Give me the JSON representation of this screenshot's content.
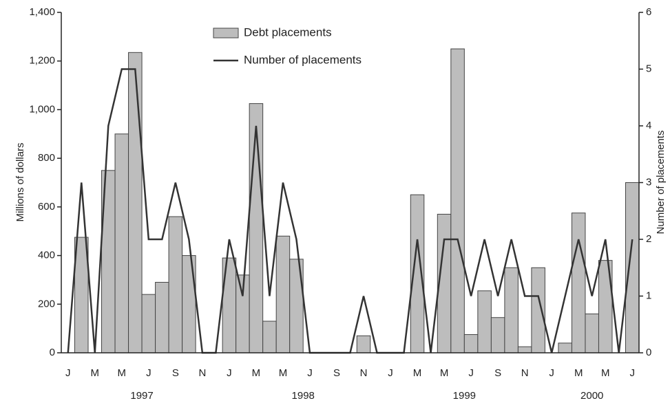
{
  "chart_data": {
    "type": "bar_line",
    "categories": [
      "J",
      null,
      "M",
      null,
      "M",
      null,
      "J",
      null,
      "S",
      null,
      "N",
      null,
      "J",
      null,
      "M",
      null,
      "M",
      null,
      "J",
      null,
      "S",
      null,
      "N",
      null,
      "J",
      null,
      "M",
      null,
      "M",
      null,
      "J",
      null,
      "S",
      null,
      "N",
      null,
      "J",
      null,
      "M",
      null,
      "M",
      null,
      "J"
    ],
    "year_labels": [
      "1997",
      "1998",
      "1999",
      "2000"
    ],
    "series": [
      {
        "name": "Debt placements",
        "color": "#bdbdbd",
        "axis": "y",
        "values": [
          0,
          475,
          0,
          750,
          900,
          1235,
          240,
          290,
          560,
          400,
          0,
          0,
          390,
          320,
          1025,
          130,
          480,
          385,
          0,
          0,
          0,
          0,
          70,
          0,
          0,
          0,
          650,
          0,
          570,
          1250,
          75,
          255,
          145,
          350,
          25,
          350,
          0,
          40,
          575,
          160,
          380,
          0,
          700
        ]
      },
      {
        "name": "Number of placements",
        "color": "#333333",
        "axis": "y2",
        "values": [
          0,
          3,
          0,
          4,
          5,
          5,
          2,
          2,
          3,
          2,
          0,
          0,
          2,
          1,
          4,
          1,
          3,
          2,
          0,
          0,
          0,
          0,
          1,
          0,
          0,
          0,
          2,
          0,
          2,
          2,
          1,
          2,
          1,
          2,
          1,
          1,
          0,
          1,
          2,
          1,
          2,
          0,
          2
        ]
      }
    ],
    "ylabel": "Millions of dollars",
    "y2label": "Number of placements",
    "ylim": [
      0,
      1400
    ],
    "yticks": [
      0,
      200,
      400,
      600,
      800,
      {
        "value": 1000,
        "label": "1,000"
      },
      {
        "value": 1200,
        "label": "1,200"
      },
      {
        "value": 1400,
        "label": "1,400"
      }
    ],
    "y2lim": [
      0,
      6
    ],
    "y2ticks": [
      0,
      1,
      2,
      3,
      4,
      5,
      6
    ],
    "legend": "upper center"
  }
}
